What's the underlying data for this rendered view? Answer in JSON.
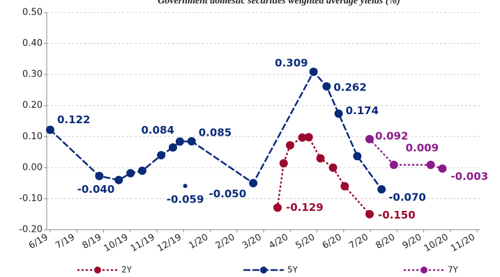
{
  "chart_data": {
    "type": "line",
    "title": "Government domestic securities weighted average yields (%)",
    "xlim": [
      -0.13,
      16.1
    ],
    "xticks": [
      {
        "value": 0,
        "label": "6/19"
      },
      {
        "value": 1,
        "label": "7/19"
      },
      {
        "value": 2,
        "label": "8/19"
      },
      {
        "value": 3,
        "label": "10/19"
      },
      {
        "value": 4,
        "label": "11/19"
      },
      {
        "value": 5,
        "label": "12/19"
      },
      {
        "value": 6,
        "label": "1/20"
      },
      {
        "value": 7,
        "label": "2/20"
      },
      {
        "value": 8,
        "label": "3/20"
      },
      {
        "value": 9,
        "label": "4/20"
      },
      {
        "value": 10,
        "label": "5/20"
      },
      {
        "value": 11,
        "label": "6/20"
      },
      {
        "value": 12,
        "label": "7/20"
      },
      {
        "value": 13,
        "label": "8/20"
      },
      {
        "value": 14,
        "label": "9/20"
      },
      {
        "value": 15,
        "label": "10/20"
      },
      {
        "value": 16,
        "label": "11/20"
      }
    ],
    "ylim": [
      -0.2,
      0.5
    ],
    "yticks": [
      {
        "value": -0.2,
        "label": "-0.20"
      },
      {
        "value": -0.1,
        "label": "-0.10"
      },
      {
        "value": 0,
        "label": "0.00"
      },
      {
        "value": 0.1,
        "label": "0.10"
      },
      {
        "value": 0.2,
        "label": "0.20"
      },
      {
        "value": 0.3,
        "label": "0.30"
      },
      {
        "value": 0.4,
        "label": "0.40"
      },
      {
        "value": 0.5,
        "label": "0.50"
      }
    ],
    "grid": true,
    "legend": "bottom",
    "series": [
      {
        "name": "2Y",
        "color": "#9b0a2e",
        "dash": "dotted",
        "x": [
          8.52,
          8.75,
          8.99,
          9.45,
          9.69,
          10.13,
          10.6,
          11.04,
          11.97
        ],
        "values": [
          -0.129,
          0.014,
          0.072,
          0.097,
          0.098,
          0.03,
          0.0,
          -0.06,
          -0.15
        ],
        "value_labels": [
          "-0.129",
          null,
          null,
          null,
          null,
          null,
          null,
          null,
          "-0.150"
        ]
      },
      {
        "name": "5Y",
        "color": "#0a2a7a",
        "dash": "dashed",
        "x": [
          0,
          1.84,
          2.57,
          3.01,
          3.45,
          4.16,
          4.6,
          4.86,
          5.3,
          7.61,
          9.87,
          10.36,
          10.81,
          11.51,
          12.42
        ],
        "values": [
          0.122,
          -0.027,
          -0.04,
          -0.018,
          -0.01,
          0.04,
          0.065,
          0.084,
          0.085,
          -0.05,
          0.309,
          0.262,
          0.174,
          0.037,
          -0.07
        ],
        "value_labels": [
          "0.122",
          null,
          "-0.040",
          null,
          null,
          null,
          null,
          "0.084",
          "0.085",
          "-0.050",
          "0.309",
          "0.262",
          "0.174",
          null,
          "-0.070"
        ]
      },
      {
        "name": "7Y",
        "color": "#8b1a8b",
        "dash": "dotted",
        "x": [
          11.97,
          12.88,
          14.26,
          14.7
        ],
        "values": [
          0.092,
          0.009,
          0.009,
          -0.003
        ],
        "value_labels": [
          "0.092",
          null,
          "0.009",
          "-0.003"
        ]
      }
    ],
    "annotations": [
      {
        "x": 5.06,
        "y": -0.059,
        "label": "-0.059",
        "color": "#0a2a7a"
      }
    ]
  }
}
